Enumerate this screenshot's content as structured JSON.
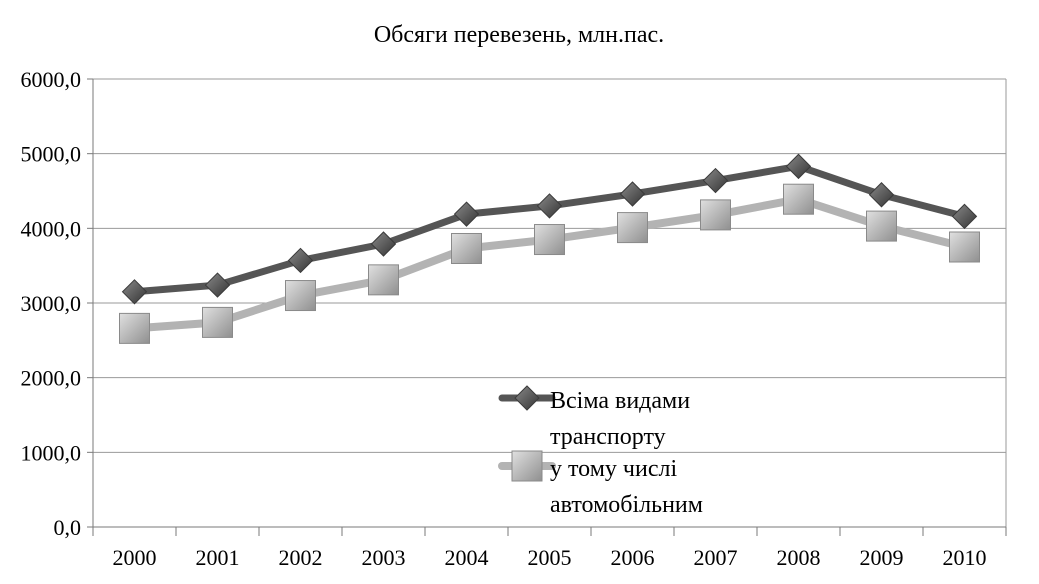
{
  "chart_data": {
    "type": "line",
    "title": "Обсяги перевезень, млн.пас.",
    "xlabel": "",
    "ylabel": "",
    "categories": [
      "2000",
      "2001",
      "2002",
      "2003",
      "2004",
      "2005",
      "2006",
      "2007",
      "2008",
      "2009",
      "2010"
    ],
    "ylim": [
      0,
      6000
    ],
    "y_ticks": [
      "0,0",
      "1000,0",
      "2000,0",
      "3000,0",
      "4000,0",
      "5000,0",
      "6000,0"
    ],
    "y_tick_values": [
      0,
      1000,
      2000,
      3000,
      4000,
      5000,
      6000
    ],
    "grid": true,
    "legend_position": "center-right",
    "series": [
      {
        "name_lines": [
          "Всіма видами",
          "транспорту"
        ],
        "color": "#555555",
        "marker": "diamond",
        "values": [
          3150,
          3240,
          3570,
          3790,
          4190,
          4300,
          4460,
          4640,
          4830,
          4450,
          4160
        ]
      },
      {
        "name_lines": [
          "у тому числі",
          "автомобільним"
        ],
        "color": "#b3b3b3",
        "marker": "square",
        "values": [
          2660,
          2740,
          3100,
          3310,
          3730,
          3850,
          4010,
          4180,
          4390,
          4030,
          3750
        ]
      }
    ]
  }
}
